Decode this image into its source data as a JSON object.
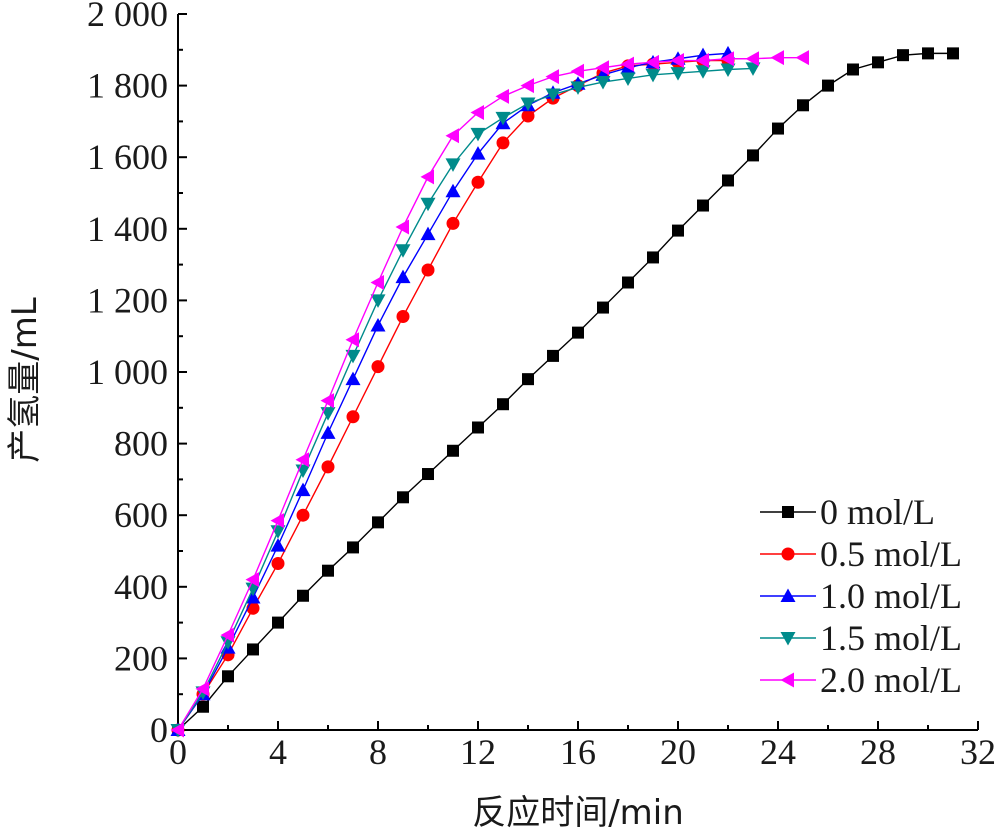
{
  "chart_data": {
    "type": "line",
    "title": "",
    "xlabel": "反应时间/min",
    "ylabel": "产氢量/mL",
    "xlim": [
      0,
      32
    ],
    "ylim": [
      0,
      2000
    ],
    "xticks": [
      0,
      4,
      8,
      12,
      16,
      20,
      24,
      28,
      32
    ],
    "xtick_labels": [
      "0",
      "4",
      "8",
      "12",
      "16",
      "20",
      "24",
      "28",
      "32"
    ],
    "yticks": [
      0,
      200,
      400,
      600,
      800,
      1000,
      1200,
      1400,
      1600,
      1800,
      2000
    ],
    "ytick_labels": [
      "0",
      "200",
      "400",
      "600",
      "800",
      "1 000",
      "1 200",
      "1 400",
      "1 600",
      "1 800",
      "2 000"
    ],
    "grid": false,
    "legend_position": "bottom-right",
    "series": [
      {
        "name": "0 mol/L",
        "color": "#000000",
        "marker": "square",
        "x": [
          0,
          1,
          2,
          3,
          4,
          5,
          6,
          7,
          8,
          9,
          10,
          11,
          12,
          13,
          14,
          15,
          16,
          17,
          18,
          19,
          20,
          21,
          22,
          23,
          24,
          25,
          26,
          27,
          28,
          29,
          30,
          31
        ],
        "y": [
          0,
          65,
          150,
          225,
          300,
          375,
          445,
          510,
          580,
          650,
          715,
          780,
          845,
          910,
          980,
          1045,
          1110,
          1180,
          1250,
          1320,
          1395,
          1465,
          1535,
          1605,
          1680,
          1745,
          1800,
          1845,
          1865,
          1885,
          1890,
          1890
        ]
      },
      {
        "name": "0.5 mol/L",
        "color": "#ff0000",
        "marker": "circle",
        "x": [
          0,
          1,
          2,
          3,
          4,
          5,
          6,
          7,
          8,
          9,
          10,
          11,
          12,
          13,
          14,
          15,
          16,
          17,
          18,
          19,
          20,
          21,
          22
        ],
        "y": [
          0,
          100,
          210,
          340,
          465,
          600,
          735,
          875,
          1015,
          1155,
          1285,
          1415,
          1530,
          1640,
          1715,
          1765,
          1800,
          1835,
          1855,
          1860,
          1865,
          1870,
          1870
        ]
      },
      {
        "name": "1.0 mol/L",
        "color": "#0000ff",
        "marker": "triangle-up",
        "x": [
          0,
          1,
          2,
          3,
          4,
          5,
          6,
          7,
          8,
          9,
          10,
          11,
          12,
          13,
          14,
          15,
          16,
          17,
          18,
          19,
          20,
          21,
          22
        ],
        "y": [
          0,
          100,
          230,
          370,
          515,
          670,
          830,
          980,
          1130,
          1265,
          1385,
          1505,
          1610,
          1695,
          1745,
          1780,
          1805,
          1830,
          1850,
          1865,
          1875,
          1885,
          1890
        ]
      },
      {
        "name": "1.5 mol/L",
        "color": "#008b8b",
        "marker": "triangle-down",
        "x": [
          0,
          1,
          2,
          3,
          4,
          5,
          6,
          7,
          8,
          9,
          10,
          11,
          12,
          13,
          14,
          15,
          16,
          17,
          18,
          19,
          20,
          21,
          22,
          23
        ],
        "y": [
          0,
          105,
          245,
          395,
          555,
          725,
          885,
          1045,
          1200,
          1340,
          1470,
          1580,
          1665,
          1710,
          1750,
          1775,
          1795,
          1810,
          1820,
          1830,
          1835,
          1840,
          1845,
          1848
        ]
      },
      {
        "name": "2.0 mol/L",
        "color": "#ff00ff",
        "marker": "triangle-left",
        "x": [
          0,
          1,
          2,
          3,
          4,
          5,
          6,
          7,
          8,
          9,
          10,
          11,
          12,
          13,
          14,
          15,
          16,
          17,
          18,
          19,
          20,
          21,
          22,
          23,
          24,
          25
        ],
        "y": [
          0,
          115,
          265,
          420,
          585,
          755,
          920,
          1090,
          1250,
          1405,
          1545,
          1660,
          1725,
          1770,
          1800,
          1825,
          1840,
          1850,
          1860,
          1865,
          1870,
          1870,
          1875,
          1875,
          1878,
          1878
        ]
      }
    ]
  }
}
